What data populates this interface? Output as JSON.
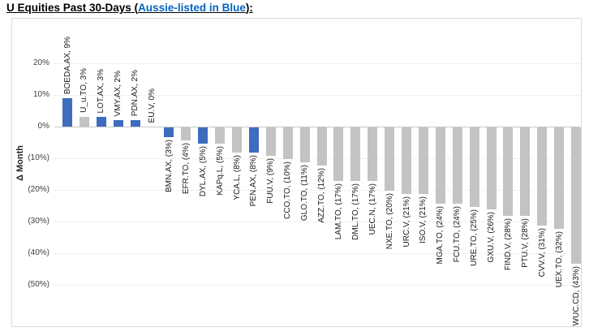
{
  "title": {
    "prefix": "U Equities Past 30-Days (",
    "link": "Aussie-listed in Blue",
    "suffix": "):"
  },
  "colors": {
    "link_blue": "#0563C1",
    "aussie_bar": "#3E6DBE",
    "other_bar": "#C3C3C3",
    "axis_text": "#404040",
    "gridline": "#E4E4E4",
    "zero_line": "#C9C9C9",
    "chart_border": "#D9D9D9"
  },
  "chart_data": {
    "type": "bar",
    "title": "U Equities Past 30-Days (Aussie-listed in Blue):",
    "xlabel": "",
    "ylabel": "Δ Month",
    "ylim": [
      -50,
      20
    ],
    "grid": "horizontal-dotted",
    "legend": "none",
    "value_unit": "percent",
    "color_rule": "Aussie-listed tickers in blue, all others gray",
    "yticks": [
      {
        "label": "20%",
        "value": 20
      },
      {
        "label": "10%",
        "value": 10
      },
      {
        "label": "0%",
        "value": 0
      },
      {
        "label": "(10%)",
        "value": -10
      },
      {
        "label": "(20%)",
        "value": -20
      },
      {
        "label": "(30%)",
        "value": -30
      },
      {
        "label": "(40%)",
        "value": -40
      },
      {
        "label": "(50%)",
        "value": -50
      }
    ],
    "bars": [
      {
        "ticker": "BOEDA.AX",
        "label": "BOEDA.AX, 9%",
        "value": 9,
        "aussie": true
      },
      {
        "ticker": "U_u.TO",
        "label": "U_u.TO, 3%",
        "value": 3,
        "aussie": false
      },
      {
        "ticker": "LOT.AX",
        "label": "LOT.AX, 3%",
        "value": 3,
        "aussie": true
      },
      {
        "ticker": "VMY.AX",
        "label": "VMY.AX, 2%",
        "value": 2,
        "aussie": true
      },
      {
        "ticker": "PDN.AX",
        "label": "PDN.AX, 2%",
        "value": 2,
        "aussie": true
      },
      {
        "ticker": "EU.V",
        "label": "EU.V, 0%",
        "value": 0,
        "aussie": false
      },
      {
        "ticker": "BMN.AX",
        "label": "BMN.AX, (3%)",
        "value": -3,
        "aussie": true
      },
      {
        "ticker": "EFR.TO",
        "label": "EFR.TO, (4%)",
        "value": -4,
        "aussie": false
      },
      {
        "ticker": "DYL.AX",
        "label": "DYL.AX, (5%)",
        "value": -5,
        "aussie": true
      },
      {
        "ticker": "KAPq.L",
        "label": "KAPq.L, (5%)",
        "value": -5,
        "aussie": false
      },
      {
        "ticker": "YCA.L",
        "label": "YCA.L, (8%)",
        "value": -8,
        "aussie": false
      },
      {
        "ticker": "PEN.AX",
        "label": "PEN.AX, (8%)",
        "value": -8,
        "aussie": true
      },
      {
        "ticker": "FUU.V",
        "label": "FUU.V, (9%)",
        "value": -9,
        "aussie": false
      },
      {
        "ticker": "CCO.TO",
        "label": "CCO.TO, (10%)",
        "value": -10,
        "aussie": false
      },
      {
        "ticker": "GLO.TO",
        "label": "GLO.TO, (11%)",
        "value": -11,
        "aussie": false
      },
      {
        "ticker": "AZZ.TO",
        "label": "AZZ.TO, (12%)",
        "value": -12,
        "aussie": false
      },
      {
        "ticker": "LAM.TO",
        "label": "LAM.TO, (17%)",
        "value": -17,
        "aussie": false
      },
      {
        "ticker": "DML.TO",
        "label": "DML.TO, (17%)",
        "value": -17,
        "aussie": false
      },
      {
        "ticker": "UEC.N",
        "label": "UEC.N, (17%)",
        "value": -17,
        "aussie": false
      },
      {
        "ticker": "NXE.TO",
        "label": "NXE.TO, (20%)",
        "value": -20,
        "aussie": false
      },
      {
        "ticker": "URC.V",
        "label": "URC.V, (21%)",
        "value": -21,
        "aussie": false
      },
      {
        "ticker": "ISO.V",
        "label": "ISO.V, (21%)",
        "value": -21,
        "aussie": false
      },
      {
        "ticker": "MGA.TO",
        "label": "MGA.TO, (24%)",
        "value": -24,
        "aussie": false
      },
      {
        "ticker": "FCU.TO",
        "label": "FCU.TO, (24%)",
        "value": -24,
        "aussie": false
      },
      {
        "ticker": "URE.TO",
        "label": "URE.TO, (25%)",
        "value": -25,
        "aussie": false
      },
      {
        "ticker": "GXU.V",
        "label": "GXU.V, (26%)",
        "value": -26,
        "aussie": false
      },
      {
        "ticker": "FIND.V",
        "label": "FIND.V, (28%)",
        "value": -28,
        "aussie": false
      },
      {
        "ticker": "PTU.V",
        "label": "PTU.V, (28%)",
        "value": -28,
        "aussie": false
      },
      {
        "ticker": "CVV.V",
        "label": "CVV.V, (31%)",
        "value": -31,
        "aussie": false
      },
      {
        "ticker": "UEX.TO",
        "label": "UEX.TO, (32%)",
        "value": -32,
        "aussie": false
      },
      {
        "ticker": "WUC.CD",
        "label": "WUC.CD, (43%)",
        "value": -43,
        "aussie": false
      }
    ]
  }
}
